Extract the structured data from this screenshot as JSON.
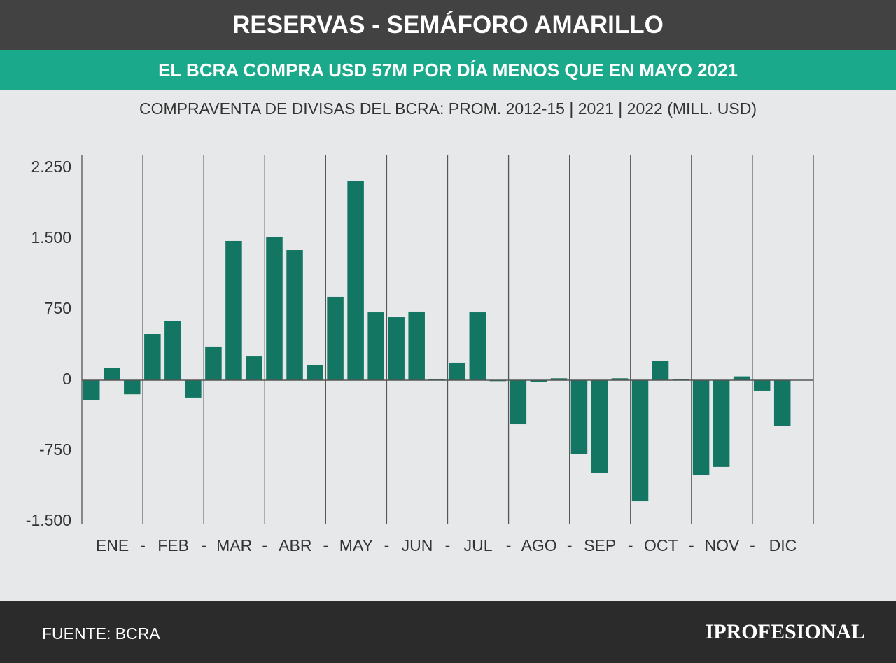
{
  "chart_data": {
    "type": "bar",
    "title": "RESERVAS - SEMÁFORO AMARILLO",
    "subtitle": "EL BCRA COMPRA USD 57M POR DÍA MENOS QUE EN MAYO 2021",
    "caption": "COMPRAVENTA DE DIVISAS DEL BCRA: PROM. 2012-15 | 2021 | 2022 (MILL. USD)",
    "source": "FUENTE: BCRA",
    "brand": "IPROFESIONAL",
    "categories": [
      "ENE",
      "FEB",
      "MAR",
      "ABR",
      "MAY",
      "JUN",
      "JUL",
      "AGO",
      "SEP",
      "OCT",
      "NOV",
      "DIC"
    ],
    "category_separator": "-",
    "series": [
      {
        "color": "#137662",
        "values": [
          -215,
          490,
          357,
          1522,
          884,
          668,
          186,
          -468,
          -787,
          -1285,
          -1010,
          -111
        ]
      },
      {
        "color": "#137662",
        "values": [
          130,
          630,
          1478,
          1381,
          2116,
          728,
          720,
          -20,
          -980,
          208,
          -920,
          -490
        ]
      },
      {
        "color": "#137662",
        "values": [
          -150,
          -185,
          252,
          156,
          720,
          15,
          -10,
          20,
          20,
          10,
          40,
          null
        ]
      }
    ],
    "ylim": [
      -1500,
      2250
    ],
    "yticks": [
      {
        "value": 2250,
        "label": "2.250"
      },
      {
        "value": 1500,
        "label": "1.500"
      },
      750,
      0,
      -750,
      {
        "value": -1500,
        "label": "-1.500"
      }
    ],
    "grid": false
  }
}
